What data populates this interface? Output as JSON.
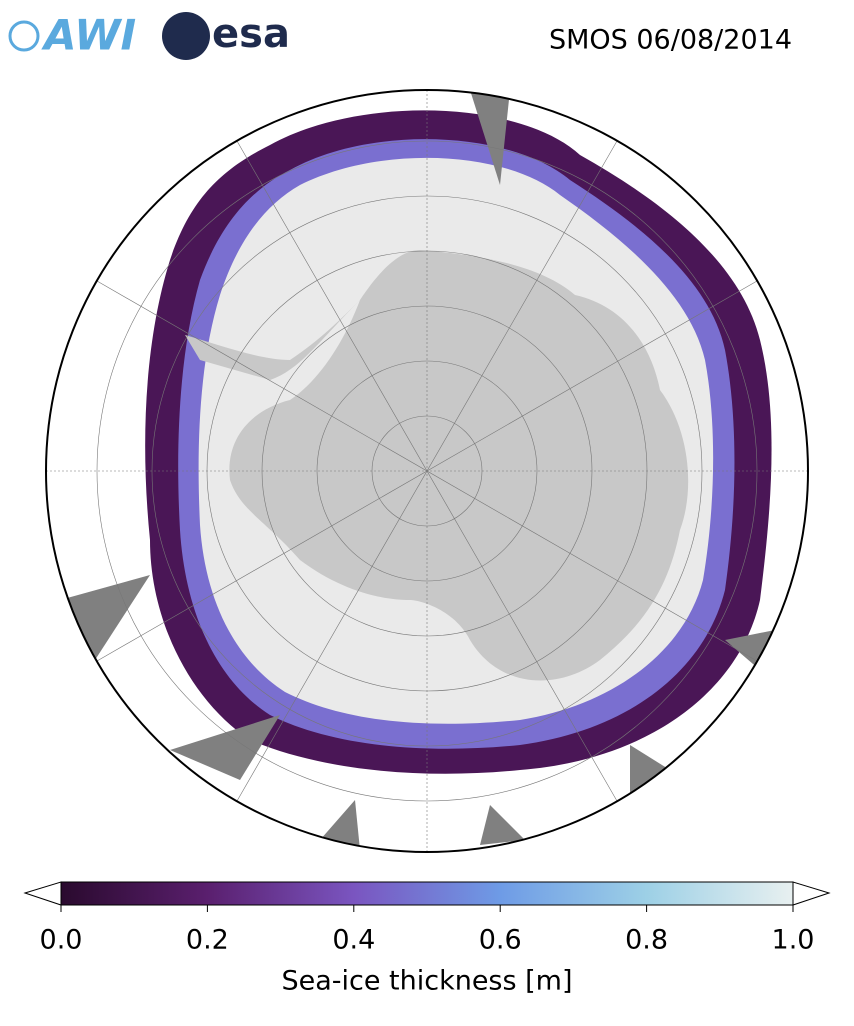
{
  "header": {
    "logo_awi": "AWI",
    "logo_esa": "esa",
    "title": "SMOS 06/08/2014"
  },
  "colorbar": {
    "label": "Sea-ice thickness [m]",
    "lim": [
      0,
      1
    ],
    "ticks": [
      {
        "value": 0,
        "label": "0.0"
      },
      {
        "value": 0.2,
        "label": "0.2"
      },
      {
        "value": 0.4,
        "label": "0.4"
      },
      {
        "value": 0.6,
        "label": "0.6"
      },
      {
        "value": 0.8,
        "label": "0.8"
      },
      {
        "value": 1,
        "label": "1.0"
      }
    ],
    "colors": [
      "#2a0a2e",
      "#5a1f6e",
      "#7a55c0",
      "#6e9be6",
      "#9dd0e6",
      "#e8f0f0"
    ]
  }
}
